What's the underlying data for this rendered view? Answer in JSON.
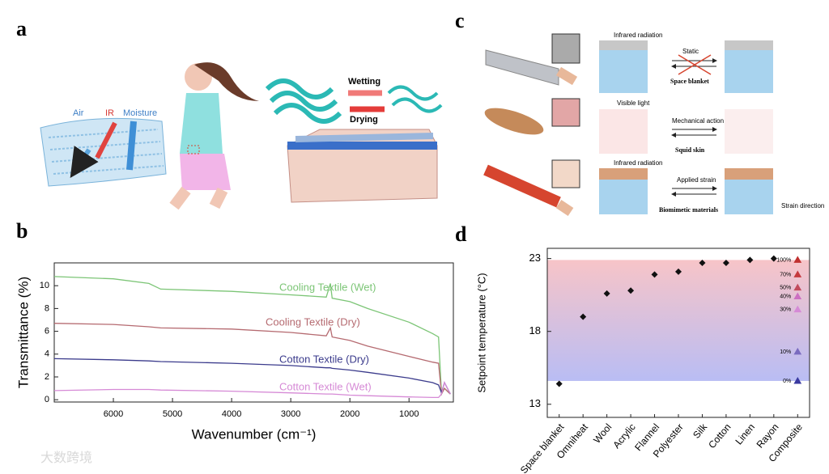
{
  "figure": {
    "letters": [
      "a",
      "b",
      "c",
      "d"
    ],
    "watermark": "大数跨境"
  },
  "panel_a": {
    "air": "Air",
    "ir": "IR",
    "moisture": "Moisture",
    "wetting": "Wetting",
    "drying": "Drying"
  },
  "panel_c": {
    "ir_top": "Infrared radiation",
    "static": "Static",
    "space_blanket": "Space blanket",
    "visible": "Visible light",
    "mechanical": "Mechanical action",
    "squid": "Squid skin",
    "ir_bottom": "Infrared radiation",
    "strain": "Applied strain",
    "biomimetic": "Biomimetic materials",
    "strain_dir": "Strain direction"
  },
  "chart_data": [
    {
      "type": "line",
      "xlabel": "Wavenumber (cm⁻¹)",
      "ylabel": "Transmittance (%)",
      "x": [
        7000,
        6000,
        5400,
        5200,
        4000,
        3000,
        2400,
        2330,
        2300,
        2000,
        1700,
        1000,
        600,
        500,
        450,
        400,
        300
      ],
      "xlim": [
        7000,
        250
      ],
      "xticks": [
        6000,
        5000,
        4000,
        3000,
        2000,
        1000
      ],
      "ylim": [
        -0.2,
        12
      ],
      "yticks": [
        0,
        2,
        4,
        6,
        8,
        10
      ],
      "series": [
        {
          "name": "Cooling Textile (Wet)",
          "color": "#7cc576",
          "values": [
            10.8,
            10.6,
            10.2,
            9.7,
            9.5,
            9.2,
            9.0,
            10.2,
            8.9,
            8.6,
            8.0,
            6.8,
            5.8,
            5.5,
            0.5,
            1.0,
            0.5
          ]
        },
        {
          "name": "Cooling Textile (Dry)",
          "color": "#b56a70",
          "values": [
            6.7,
            6.6,
            6.4,
            6.3,
            6.2,
            5.9,
            5.6,
            6.3,
            5.5,
            5.2,
            4.7,
            3.8,
            3.3,
            3.2,
            0.5,
            1.0,
            0.5
          ]
        },
        {
          "name": "Cotton Textile (Dry)",
          "color": "#3b3b8c",
          "values": [
            3.6,
            3.5,
            3.4,
            3.35,
            3.2,
            3.0,
            2.8,
            2.8,
            2.75,
            2.6,
            2.4,
            1.9,
            1.5,
            1.3,
            0.6,
            1.5,
            0.5
          ]
        },
        {
          "name": "Cotton Textile (Wet)",
          "color": "#d68ad6",
          "values": [
            0.8,
            0.9,
            0.9,
            0.85,
            0.75,
            0.6,
            0.5,
            0.5,
            0.5,
            0.4,
            0.35,
            0.25,
            0.2,
            0.2,
            0.5,
            1.5,
            0.5
          ]
        }
      ]
    },
    {
      "type": "scatter",
      "ylabel": "Setpoint temperature (°C)",
      "categories": [
        "Space blanket",
        "Omniheat",
        "Wool",
        "Acrylic",
        "Flannel",
        "Polyester",
        "Silk",
        "Cotton",
        "Linen",
        "Rayon",
        "Composite"
      ],
      "values": [
        14.4,
        19.0,
        20.6,
        20.8,
        21.9,
        22.1,
        22.7,
        22.7,
        22.9,
        23.0,
        null
      ],
      "color": "#111111",
      "ylim": [
        12.1,
        23.7
      ],
      "yticks": [
        13,
        18,
        23
      ],
      "band": [
        14.6,
        22.9
      ],
      "band_colors": [
        "#f7c4c8",
        "#b9bdf4"
      ],
      "annotations": [
        {
          "label": "100%",
          "value": 22.9,
          "color": "#c0302f"
        },
        {
          "label": "70%",
          "value": 21.9,
          "color": "#c5393d"
        },
        {
          "label": "50%",
          "value": 21.0,
          "color": "#c24b5c"
        },
        {
          "label": "40%",
          "value": 20.4,
          "color": "#cc6fc2"
        },
        {
          "label": "30%",
          "value": 19.5,
          "color": "#d58ad6"
        },
        {
          "label": "10%",
          "value": 16.6,
          "color": "#7a6bbf"
        },
        {
          "label": "0%",
          "value": 14.6,
          "color": "#3a3aa0"
        }
      ]
    }
  ]
}
